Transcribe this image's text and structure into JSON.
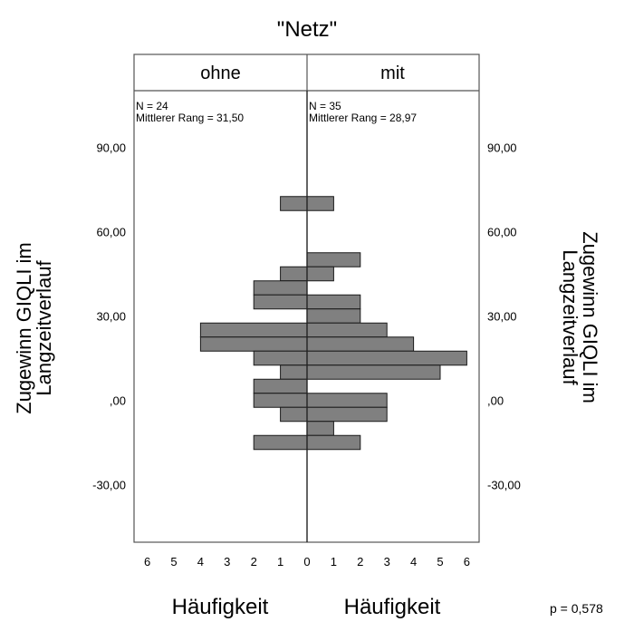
{
  "chart_data": {
    "type": "bar",
    "orientation": "back-to-back-horizontal-histogram",
    "title": "\"Netz\"",
    "ylabel": "Zugewinn GIQLI im Langzeitverlauf",
    "xlabel_left": "Häufigkeit",
    "xlabel_right": "Häufigkeit",
    "ylim": [
      -50,
      110
    ],
    "yticks": [
      {
        "value": 90,
        "label": "90,00"
      },
      {
        "value": 60,
        "label": "60,00"
      },
      {
        "value": 30,
        "label": "30,00"
      },
      {
        "value": 0,
        "label": ",00"
      },
      {
        "value": -30,
        "label": "-30,00"
      }
    ],
    "xlim": [
      0,
      6
    ],
    "xticks_left": [
      "6",
      "5",
      "4",
      "3",
      "2",
      "1",
      "0"
    ],
    "xticks_right": [
      "1",
      "2",
      "3",
      "4",
      "5",
      "6"
    ],
    "bin_width": 5,
    "panels": [
      {
        "label": "ohne",
        "n_text": "N = 24",
        "rank_text": "Mittlerer Rang = 31,50",
        "bins": [
          {
            "y": 70,
            "count": 1
          },
          {
            "y": 45,
            "count": 1
          },
          {
            "y": 40,
            "count": 2
          },
          {
            "y": 35,
            "count": 2
          },
          {
            "y": 25,
            "count": 4
          },
          {
            "y": 20,
            "count": 4
          },
          {
            "y": 15,
            "count": 2
          },
          {
            "y": 10,
            "count": 1
          },
          {
            "y": 5,
            "count": 2
          },
          {
            "y": 0,
            "count": 2
          },
          {
            "y": -5,
            "count": 1
          },
          {
            "y": -15,
            "count": 2
          }
        ]
      },
      {
        "label": "mit",
        "n_text": "N = 35",
        "rank_text": "Mittlerer Rang = 28,97",
        "bins": [
          {
            "y": 70,
            "count": 1
          },
          {
            "y": 50,
            "count": 2
          },
          {
            "y": 45,
            "count": 1
          },
          {
            "y": 35,
            "count": 2
          },
          {
            "y": 30,
            "count": 2
          },
          {
            "y": 25,
            "count": 3
          },
          {
            "y": 20,
            "count": 4
          },
          {
            "y": 15,
            "count": 6
          },
          {
            "y": 10,
            "count": 5
          },
          {
            "y": 0,
            "count": 3
          },
          {
            "y": -5,
            "count": 3
          },
          {
            "y": -10,
            "count": 1
          },
          {
            "y": -15,
            "count": 2
          }
        ]
      }
    ],
    "annotation": "p = 0,578",
    "colors": {
      "bar_fill": "#808080",
      "bar_stroke": "#1a1a1a",
      "frame": "#555555"
    }
  }
}
